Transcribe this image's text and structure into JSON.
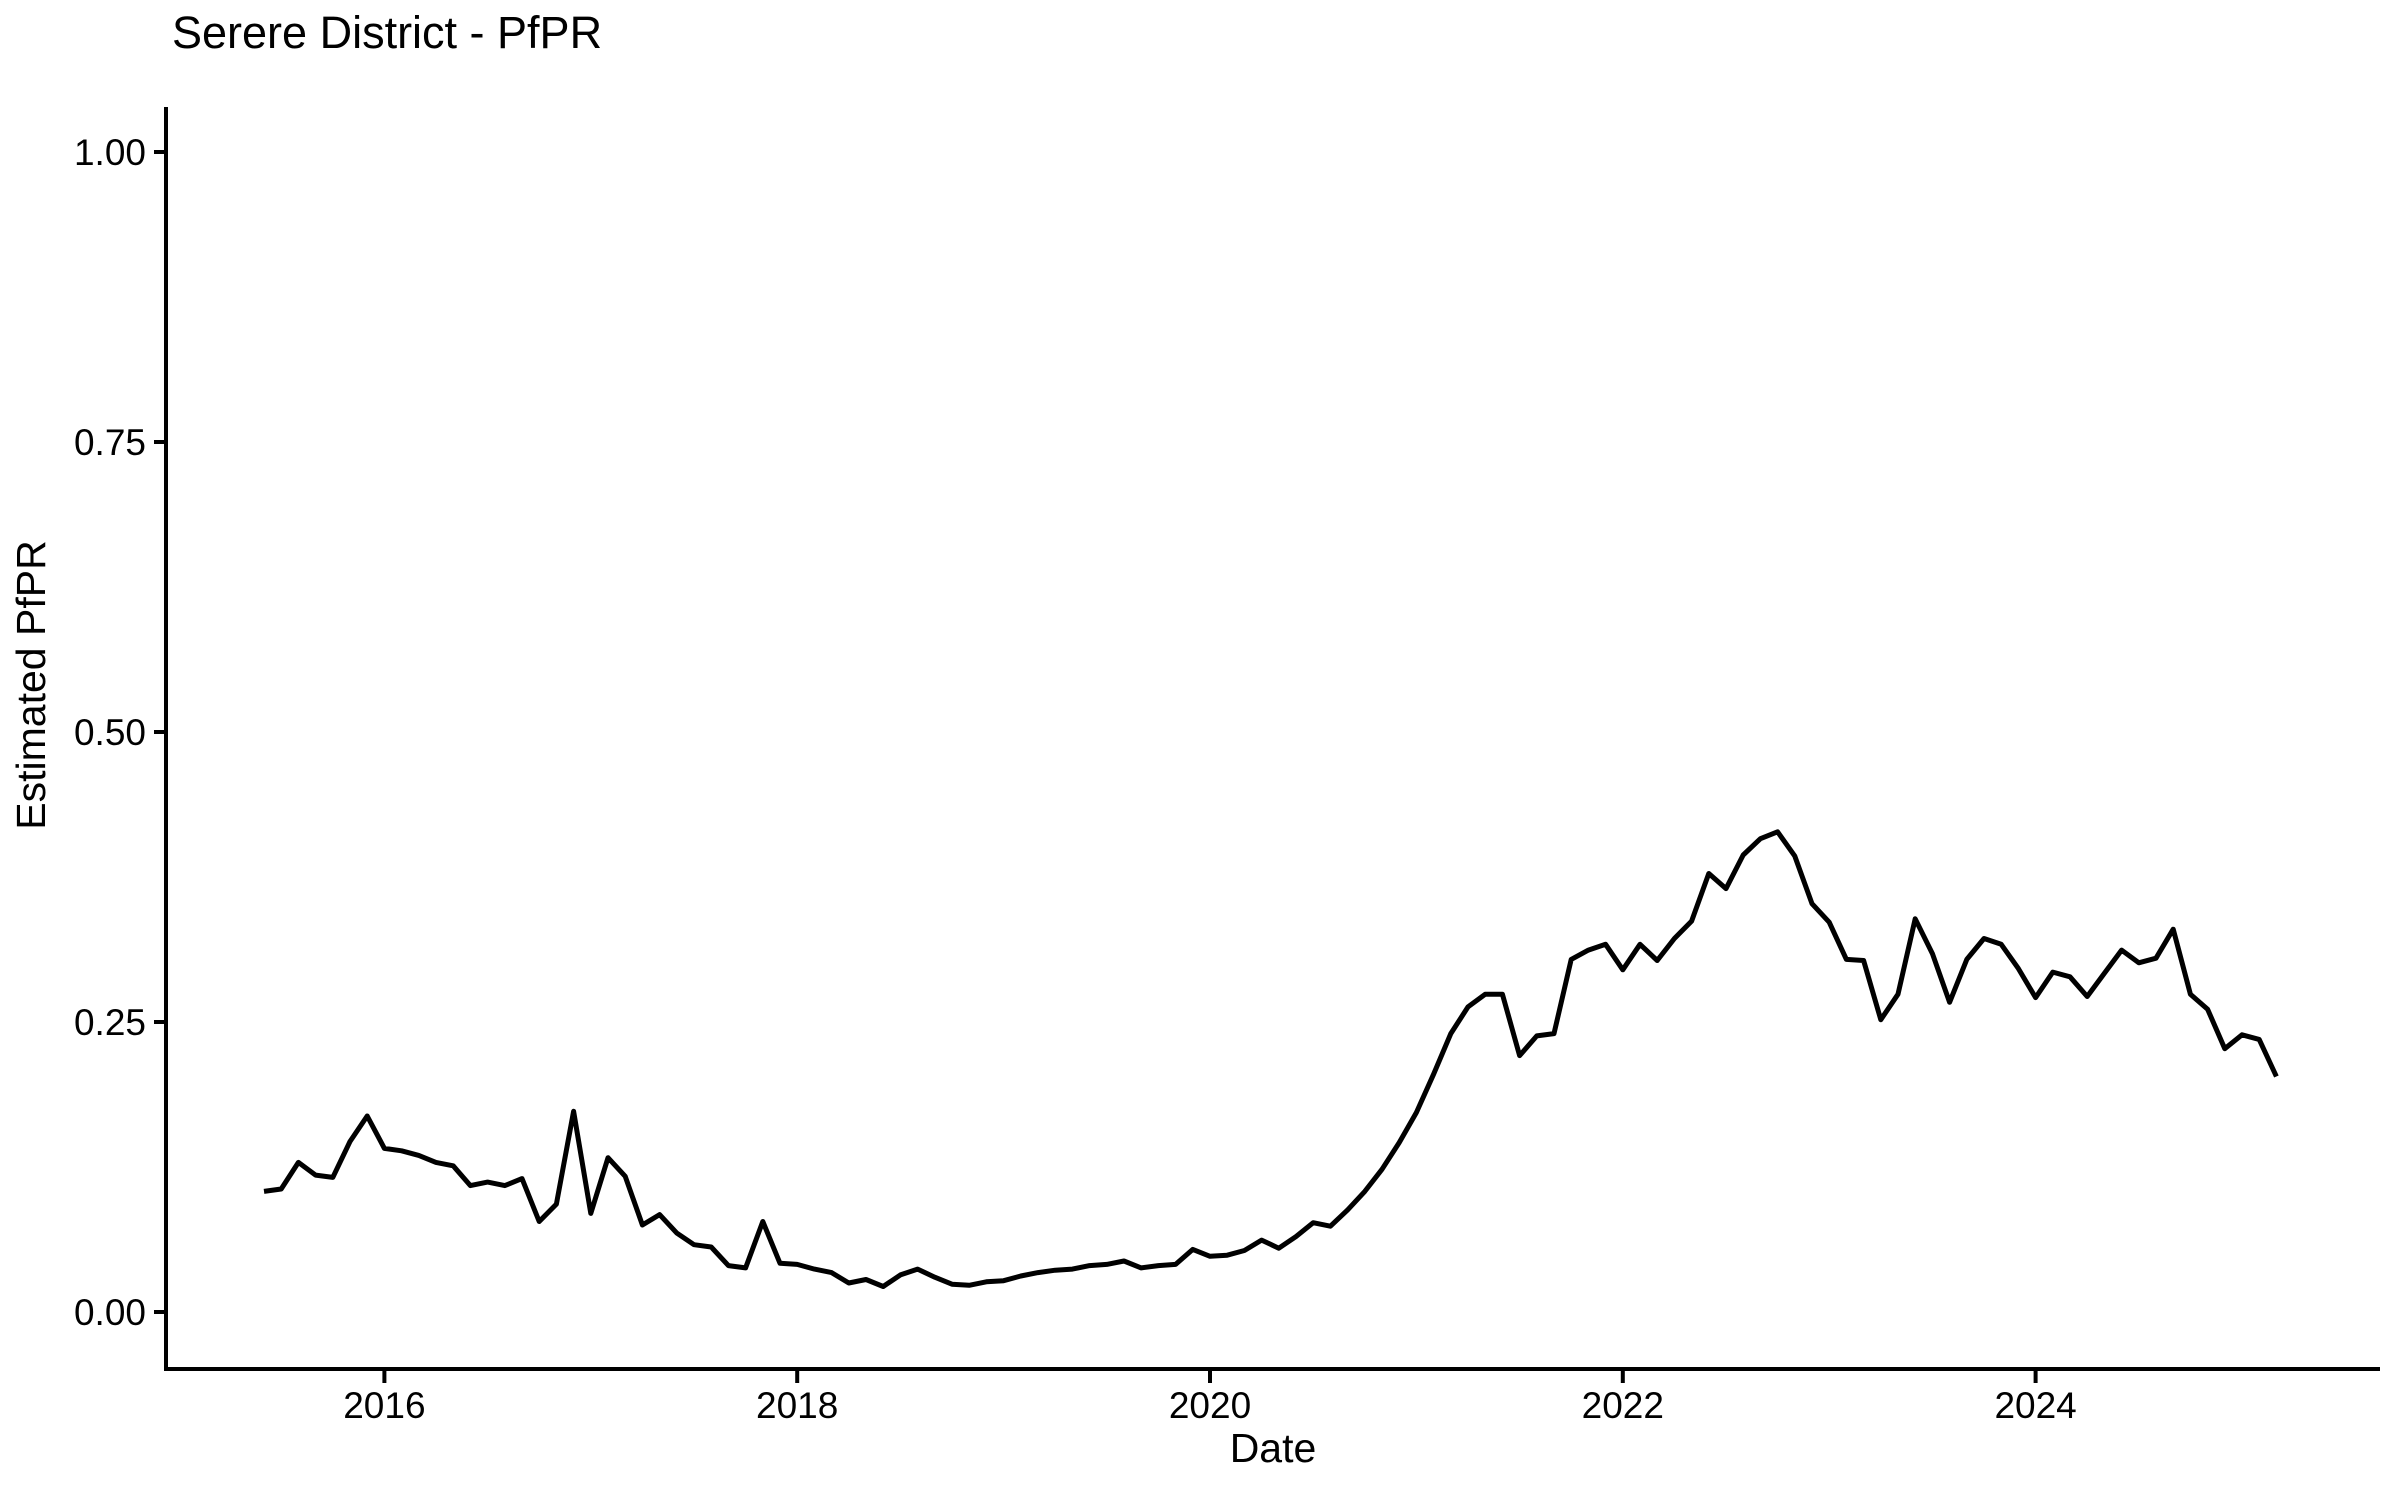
{
  "chart_data": {
    "type": "line",
    "title": "Serere District - PfPR",
    "xlabel": "Date",
    "ylabel": "Estimated PfPR",
    "series_name": "Estimated PfPR (monthly)",
    "frequency": "monthly",
    "x_start": "2015-06",
    "x_end": "2025-03",
    "values": [
      0.104,
      0.106,
      0.129,
      0.118,
      0.116,
      0.147,
      0.169,
      0.141,
      0.139,
      0.135,
      0.129,
      0.126,
      0.109,
      0.112,
      0.109,
      0.115,
      0.078,
      0.093,
      0.173,
      0.085,
      0.133,
      0.117,
      0.075,
      0.084,
      0.068,
      0.058,
      0.056,
      0.04,
      0.038,
      0.078,
      0.042,
      0.041,
      0.037,
      0.034,
      0.025,
      0.028,
      0.022,
      0.032,
      0.037,
      0.03,
      0.024,
      0.023,
      0.026,
      0.027,
      0.031,
      0.034,
      0.036,
      0.037,
      0.04,
      0.041,
      0.044,
      0.038,
      0.04,
      0.041,
      0.054,
      0.048,
      0.049,
      0.053,
      0.062,
      0.055,
      0.065,
      0.077,
      0.074,
      0.088,
      0.104,
      0.123,
      0.146,
      0.172,
      0.205,
      0.24,
      0.263,
      0.274,
      0.274,
      0.221,
      0.238,
      0.24,
      0.304,
      0.312,
      0.317,
      0.295,
      0.317,
      0.303,
      0.322,
      0.337,
      0.378,
      0.365,
      0.394,
      0.408,
      0.414,
      0.393,
      0.352,
      0.336,
      0.304,
      0.303,
      0.252,
      0.274,
      0.339,
      0.309,
      0.267,
      0.304,
      0.322,
      0.317,
      0.296,
      0.271,
      0.293,
      0.289,
      0.272,
      0.292,
      0.312,
      0.301,
      0.305,
      0.33,
      0.274,
      0.261,
      0.227,
      0.239,
      0.235,
      0.203
    ],
    "x_ticks": [
      {
        "label": "2016",
        "month_index": 7
      },
      {
        "label": "2018",
        "month_index": 31
      },
      {
        "label": "2020",
        "month_index": 55
      },
      {
        "label": "2022",
        "month_index": 79
      },
      {
        "label": "2024",
        "month_index": 103
      }
    ],
    "y_ticks": [
      {
        "value": 0.0,
        "label": "0.00"
      },
      {
        "value": 0.25,
        "label": "0.25"
      },
      {
        "value": 0.5,
        "label": "0.50"
      },
      {
        "value": 0.75,
        "label": "0.75"
      },
      {
        "value": 1.0,
        "label": "1.00"
      }
    ],
    "ylim": [
      0,
      1
    ],
    "grid": false,
    "legend": "none",
    "line_color": "#000000",
    "axis_color": "#000000",
    "text_color": "#000000",
    "background": "#ffffff"
  }
}
